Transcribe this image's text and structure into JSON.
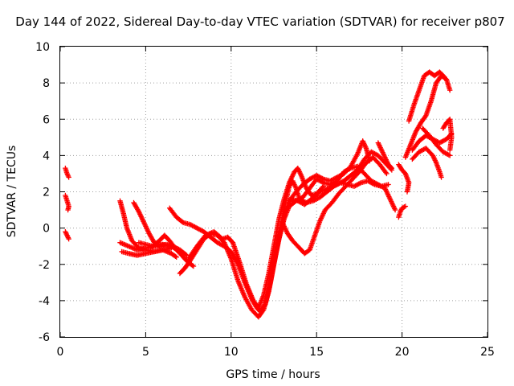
{
  "chart_data": {
    "type": "scatter",
    "title": "Day 144 of 2022, Sidereal Day-to-day VTEC variation (SDTVAR) for receiver p807",
    "xlabel": "GPS time / hours",
    "ylabel": "SDTVAR / TECUs",
    "xlim": [
      0,
      25
    ],
    "ylim": [
      -6,
      10
    ],
    "xticks": [
      0,
      5,
      10,
      15,
      20,
      25
    ],
    "yticks": [
      -6,
      -4,
      -2,
      0,
      2,
      4,
      6,
      8,
      10
    ],
    "grid": true,
    "marker": "plus",
    "color": "#ff0000",
    "tracks": [
      [
        [
          0.3,
          3.3
        ],
        [
          0.4,
          3.0
        ],
        [
          0.5,
          2.8
        ]
      ],
      [
        [
          0.3,
          1.8
        ],
        [
          0.4,
          1.5
        ],
        [
          0.5,
          1.2
        ],
        [
          0.45,
          1.0
        ]
      ],
      [
        [
          0.3,
          -0.2
        ],
        [
          0.4,
          -0.4
        ],
        [
          0.5,
          -0.6
        ]
      ],
      [
        [
          3.5,
          1.5
        ],
        [
          3.7,
          0.8
        ],
        [
          3.9,
          0.0
        ],
        [
          4.2,
          -0.7
        ],
        [
          4.6,
          -1.1
        ],
        [
          5.0,
          -1.2
        ],
        [
          5.5,
          -1.3
        ],
        [
          6.0,
          -1.2
        ],
        [
          6.5,
          -1.4
        ],
        [
          6.8,
          -1.6
        ]
      ],
      [
        [
          3.5,
          -0.8
        ],
        [
          4.0,
          -1.0
        ],
        [
          4.5,
          -1.2
        ],
        [
          5.0,
          -1.1
        ],
        [
          5.5,
          -1.0
        ],
        [
          6.0,
          -0.9
        ],
        [
          6.5,
          -1.0
        ],
        [
          7.0,
          -1.3
        ]
      ],
      [
        [
          3.6,
          -1.3
        ],
        [
          4.0,
          -1.4
        ],
        [
          4.5,
          -1.5
        ],
        [
          5.0,
          -1.4
        ],
        [
          5.5,
          -1.3
        ],
        [
          6.0,
          -1.2
        ],
        [
          6.5,
          -1.1
        ]
      ],
      [
        [
          4.3,
          1.4
        ],
        [
          4.6,
          0.9
        ],
        [
          4.9,
          0.3
        ],
        [
          5.2,
          -0.3
        ],
        [
          5.5,
          -0.8
        ],
        [
          5.8,
          -1.0
        ],
        [
          6.2,
          -0.9
        ],
        [
          6.6,
          -1.0
        ],
        [
          7.0,
          -1.2
        ],
        [
          7.4,
          -1.5
        ]
      ],
      [
        [
          4.6,
          -0.8
        ],
        [
          5.0,
          -0.9
        ],
        [
          5.4,
          -1.0
        ],
        [
          5.8,
          -0.7
        ],
        [
          6.1,
          -0.4
        ],
        [
          6.4,
          -0.7
        ],
        [
          6.8,
          -1.2
        ],
        [
          7.2,
          -1.6
        ],
        [
          7.5,
          -1.9
        ],
        [
          7.8,
          -2.1
        ]
      ],
      [
        [
          6.4,
          1.1
        ],
        [
          6.8,
          0.6
        ],
        [
          7.2,
          0.3
        ],
        [
          7.6,
          0.2
        ],
        [
          8.0,
          0.0
        ],
        [
          8.4,
          -0.2
        ],
        [
          8.8,
          -0.5
        ],
        [
          9.2,
          -0.8
        ],
        [
          9.6,
          -1.0
        ],
        [
          10.0,
          -1.3
        ],
        [
          10.4,
          -2.0
        ],
        [
          10.8,
          -3.0
        ],
        [
          11.2,
          -3.9
        ],
        [
          11.5,
          -4.4
        ],
        [
          11.7,
          -4.6
        ],
        [
          12.0,
          -4.2
        ],
        [
          12.3,
          -3.0
        ],
        [
          12.6,
          -1.5
        ],
        [
          12.9,
          -0.1
        ],
        [
          13.2,
          1.0
        ],
        [
          13.5,
          1.6
        ],
        [
          13.9,
          1.5
        ],
        [
          14.3,
          1.3
        ],
        [
          14.7,
          1.6
        ],
        [
          15.2,
          2.0
        ],
        [
          15.7,
          2.2
        ],
        [
          16.2,
          2.4
        ],
        [
          16.6,
          2.6
        ],
        [
          17.0,
          2.9
        ],
        [
          17.4,
          3.2
        ],
        [
          17.8,
          3.8
        ],
        [
          18.2,
          4.2
        ],
        [
          18.6,
          4.0
        ],
        [
          19.0,
          3.6
        ],
        [
          19.4,
          3.2
        ]
      ],
      [
        [
          7.0,
          -2.5
        ],
        [
          7.3,
          -2.2
        ],
        [
          7.6,
          -1.8
        ],
        [
          8.0,
          -1.2
        ],
        [
          8.4,
          -0.6
        ],
        [
          8.8,
          -0.3
        ],
        [
          9.2,
          -0.4
        ],
        [
          9.6,
          -0.8
        ],
        [
          10.0,
          -1.7
        ],
        [
          10.4,
          -2.9
        ],
        [
          10.8,
          -3.8
        ],
        [
          11.2,
          -4.5
        ],
        [
          11.6,
          -4.9
        ],
        [
          11.9,
          -4.5
        ],
        [
          12.2,
          -3.5
        ],
        [
          12.5,
          -2.0
        ],
        [
          12.8,
          -0.6
        ],
        [
          13.1,
          0.5
        ],
        [
          13.4,
          1.2
        ],
        [
          13.8,
          1.5
        ],
        [
          14.2,
          1.7
        ],
        [
          14.6,
          2.2
        ],
        [
          15.0,
          2.7
        ],
        [
          15.4,
          2.5
        ],
        [
          15.8,
          2.4
        ],
        [
          16.2,
          2.6
        ],
        [
          16.6,
          3.1
        ],
        [
          17.0,
          3.3
        ],
        [
          17.4,
          3.4
        ],
        [
          17.8,
          3.0
        ],
        [
          18.2,
          2.6
        ],
        [
          18.6,
          2.4
        ],
        [
          19.0,
          2.2
        ],
        [
          19.4,
          1.4
        ],
        [
          19.6,
          1.0
        ]
      ],
      [
        [
          7.5,
          -1.7
        ],
        [
          8.0,
          -1.0
        ],
        [
          8.5,
          -0.4
        ],
        [
          9.0,
          -0.2
        ],
        [
          9.5,
          -0.6
        ],
        [
          9.8,
          -0.5
        ],
        [
          10.1,
          -0.8
        ],
        [
          10.5,
          -1.9
        ],
        [
          10.9,
          -3.1
        ],
        [
          11.3,
          -4.0
        ],
        [
          11.6,
          -4.4
        ],
        [
          11.9,
          -3.7
        ],
        [
          12.2,
          -2.5
        ],
        [
          12.5,
          -1.0
        ],
        [
          12.8,
          0.5
        ],
        [
          13.1,
          1.6
        ],
        [
          13.4,
          2.5
        ],
        [
          13.7,
          3.1
        ],
        [
          13.9,
          3.3
        ],
        [
          14.1,
          2.9
        ],
        [
          14.4,
          2.2
        ],
        [
          14.7,
          1.8
        ],
        [
          15.0,
          1.9
        ],
        [
          15.4,
          2.3
        ]
      ],
      [
        [
          12.8,
          -0.5
        ],
        [
          13.0,
          0.5
        ],
        [
          13.2,
          1.5
        ],
        [
          13.4,
          2.3
        ],
        [
          13.6,
          2.6
        ],
        [
          13.8,
          2.2
        ],
        [
          14.0,
          1.6
        ],
        [
          14.4,
          1.4
        ],
        [
          14.8,
          1.5
        ],
        [
          15.2,
          1.7
        ],
        [
          15.6,
          2.0
        ],
        [
          16.0,
          2.3
        ],
        [
          16.4,
          2.5
        ],
        [
          16.8,
          2.4
        ],
        [
          17.2,
          2.3
        ],
        [
          17.6,
          2.5
        ],
        [
          18.0,
          2.6
        ],
        [
          18.4,
          2.4
        ],
        [
          18.8,
          2.3
        ],
        [
          19.2,
          2.4
        ]
      ],
      [
        [
          13.0,
          0.3
        ],
        [
          13.3,
          -0.3
        ],
        [
          13.6,
          -0.7
        ],
        [
          14.0,
          -1.1
        ],
        [
          14.3,
          -1.4
        ],
        [
          14.6,
          -1.2
        ],
        [
          14.9,
          -0.4
        ],
        [
          15.2,
          0.4
        ],
        [
          15.5,
          1.0
        ],
        [
          15.9,
          1.4
        ],
        [
          16.3,
          1.9
        ],
        [
          16.7,
          2.3
        ],
        [
          17.1,
          2.7
        ],
        [
          17.5,
          3.1
        ],
        [
          17.9,
          3.6
        ],
        [
          18.3,
          3.9
        ],
        [
          18.7,
          3.5
        ],
        [
          19.1,
          3.0
        ]
      ],
      [
        [
          13.4,
          1.5
        ],
        [
          13.8,
          2.0
        ],
        [
          14.2,
          2.4
        ],
        [
          14.6,
          2.7
        ],
        [
          15.0,
          2.9
        ],
        [
          15.4,
          2.7
        ],
        [
          15.8,
          2.6
        ],
        [
          16.2,
          2.8
        ],
        [
          16.6,
          3.0
        ],
        [
          17.0,
          3.4
        ],
        [
          17.4,
          4.1
        ],
        [
          17.7,
          4.8
        ],
        [
          17.9,
          4.4
        ],
        [
          18.1,
          3.7
        ]
      ],
      [
        [
          18.6,
          4.7
        ],
        [
          18.8,
          4.3
        ],
        [
          19.0,
          3.9
        ],
        [
          19.2,
          3.5
        ],
        [
          19.4,
          3.3
        ]
      ],
      [
        [
          19.8,
          3.5
        ],
        [
          20.0,
          3.2
        ],
        [
          20.2,
          3.0
        ],
        [
          20.4,
          2.5
        ],
        [
          20.3,
          2.0
        ]
      ],
      [
        [
          19.8,
          0.6
        ],
        [
          19.9,
          0.9
        ],
        [
          20.0,
          1.1
        ],
        [
          20.2,
          1.2
        ]
      ],
      [
        [
          20.2,
          3.9
        ],
        [
          20.5,
          4.6
        ],
        [
          20.8,
          5.3
        ],
        [
          21.1,
          5.8
        ],
        [
          21.4,
          6.2
        ],
        [
          21.7,
          7.0
        ],
        [
          22.0,
          8.0
        ],
        [
          22.3,
          8.4
        ],
        [
          22.6,
          8.2
        ],
        [
          22.8,
          7.6
        ]
      ],
      [
        [
          20.4,
          5.9
        ],
        [
          20.7,
          6.8
        ],
        [
          21.0,
          7.6
        ],
        [
          21.3,
          8.4
        ],
        [
          21.6,
          8.6
        ],
        [
          21.9,
          8.4
        ],
        [
          22.2,
          8.6
        ],
        [
          22.5,
          8.3
        ]
      ],
      [
        [
          20.6,
          4.3
        ],
        [
          21.0,
          4.8
        ],
        [
          21.4,
          5.1
        ],
        [
          21.8,
          4.9
        ],
        [
          22.2,
          4.7
        ],
        [
          22.6,
          4.9
        ],
        [
          22.9,
          5.2
        ]
      ],
      [
        [
          20.6,
          3.8
        ],
        [
          21.0,
          4.2
        ],
        [
          21.4,
          4.4
        ],
        [
          21.8,
          4.0
        ],
        [
          22.0,
          3.6
        ],
        [
          22.2,
          3.1
        ],
        [
          22.3,
          2.8
        ]
      ],
      [
        [
          21.2,
          5.5
        ],
        [
          21.6,
          5.1
        ],
        [
          22.0,
          4.6
        ],
        [
          22.4,
          4.2
        ],
        [
          22.8,
          4.0
        ]
      ],
      [
        [
          22.4,
          5.5
        ],
        [
          22.6,
          5.8
        ],
        [
          22.8,
          6.0
        ],
        [
          22.9,
          5.0
        ],
        [
          22.8,
          4.3
        ]
      ]
    ]
  }
}
